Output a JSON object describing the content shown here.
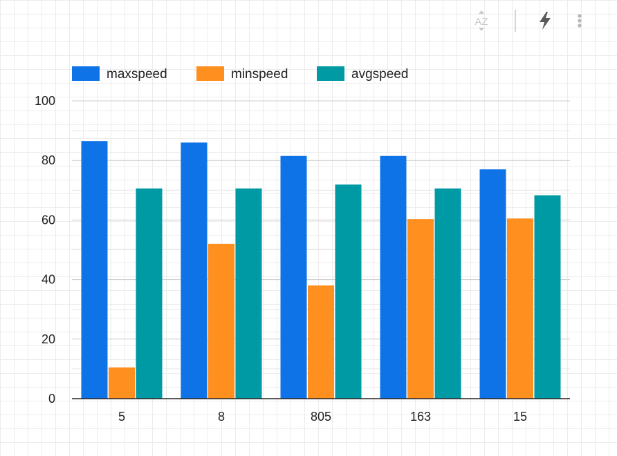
{
  "toolbar": {
    "sort_icon": "sort-az-icon",
    "sort_label": "AZ",
    "flash_icon": "lightning-bolt-icon",
    "menu_icon": "more-vertical-icon"
  },
  "chart_data": {
    "type": "bar",
    "title": "",
    "xlabel": "",
    "ylabel": "",
    "categories": [
      "5",
      "8",
      "805",
      "163",
      "15"
    ],
    "series": [
      {
        "name": "maxspeed",
        "color": "#0F73E8",
        "values": [
          86.5,
          86,
          81.5,
          81.5,
          77
        ]
      },
      {
        "name": "minspeed",
        "color": "#FF8F1F",
        "values": [
          10.5,
          52,
          38,
          60.3,
          60.5
        ]
      },
      {
        "name": "avgspeed",
        "color": "#009AA5",
        "values": [
          70.6,
          70.6,
          71.9,
          70.6,
          68.3
        ]
      }
    ],
    "ylim": [
      0,
      100
    ],
    "yticks": [
      0,
      20,
      40,
      60,
      80,
      100
    ],
    "grid": true,
    "legend": "top-left"
  }
}
